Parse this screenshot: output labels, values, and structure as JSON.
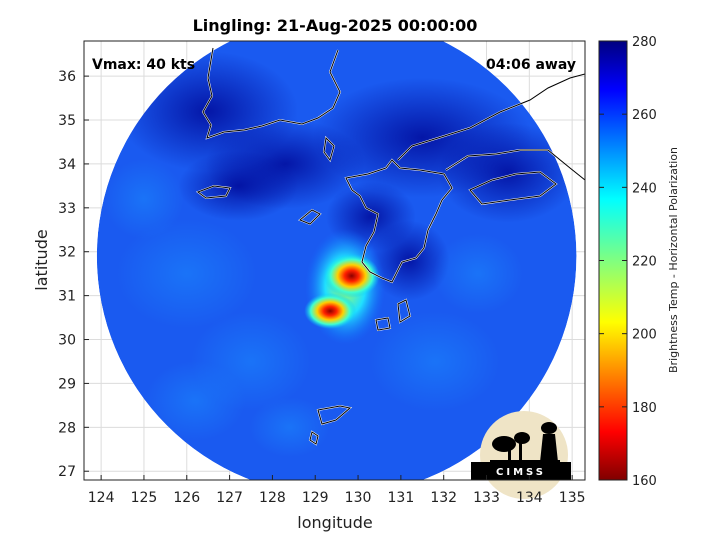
{
  "chart_data": {
    "type": "heatmap",
    "title": "Lingling: 21-Aug-2025 00:00:00",
    "xlabel": "longitude",
    "ylabel": "latitude",
    "xlim": [
      123.6,
      135.3
    ],
    "ylim": [
      26.8,
      36.8
    ],
    "xticks": [
      124,
      125,
      126,
      127,
      128,
      129,
      130,
      131,
      132,
      133,
      134,
      135
    ],
    "yticks": [
      27,
      28,
      29,
      30,
      31,
      32,
      33,
      34,
      35,
      36
    ],
    "grid": true,
    "annotations": {
      "vmax": "Vmax: 40 kts",
      "time_away": "04:06 away"
    },
    "colorbar": {
      "label": "Brightness Temp - Horizontal Polarization",
      "min": 160,
      "max": 280,
      "ticks": [
        160,
        180,
        200,
        220,
        240,
        260,
        280
      ],
      "colormap": "jet"
    },
    "swath": {
      "center_lon": 129.5,
      "center_lat": 31.9,
      "radius_deg": 5.6,
      "background_tb": 262
    },
    "features": [
      {
        "lon": 129.85,
        "lat": 31.45,
        "tb": 178,
        "note": "cold core north"
      },
      {
        "lon": 129.35,
        "lat": 30.65,
        "tb": 175,
        "note": "cold core south"
      },
      {
        "lon": 129.7,
        "lat": 31.2,
        "tb": 225,
        "note": "rainband"
      }
    ],
    "logo_text": "CIMSS"
  }
}
